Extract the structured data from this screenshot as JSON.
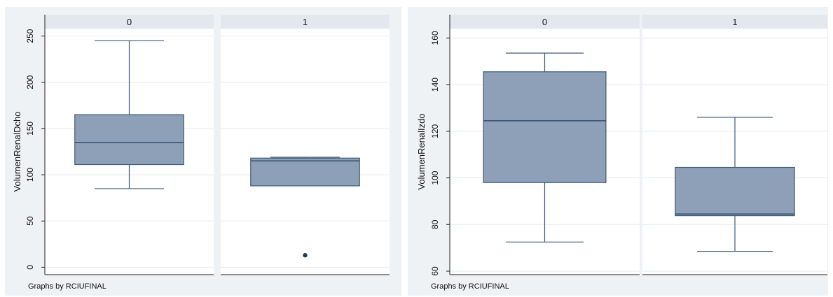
{
  "chart_data": [
    {
      "type": "box",
      "by_label": "Graphs by RCIUFINAL",
      "ylabel": "VolumenRenalDcho",
      "ylim": [
        -8,
        258
      ],
      "yticks": [
        0,
        50,
        100,
        150,
        200,
        250
      ],
      "grid": true,
      "panels": [
        {
          "label": "0",
          "min": 85,
          "q1": 111,
          "median": 135,
          "q3": 165,
          "max": 245,
          "outliers": []
        },
        {
          "label": "1",
          "min": 88,
          "q1": 88,
          "median": 115,
          "q3": 118,
          "max": 119,
          "outliers": [
            13
          ]
        }
      ],
      "colors": {
        "box": "#8da0b8",
        "box_stroke": "#3c5a78",
        "median": "#2a4a6b",
        "whisker": "#3c5a78",
        "outlier": "#1d3f5f",
        "strip": "#e3e8ee",
        "frame_bg": "#eef2f5"
      }
    },
    {
      "type": "box",
      "by_label": "Graphs by RCIUFINAL",
      "ylabel": "VolumenRenalIzdo",
      "ylim": [
        58.5,
        164
      ],
      "yticks": [
        60,
        80,
        100,
        120,
        140,
        160
      ],
      "grid": true,
      "panels": [
        {
          "label": "0",
          "min": 72.5,
          "q1": 98,
          "median": 124.5,
          "q3": 145.5,
          "max": 153.5,
          "outliers": []
        },
        {
          "label": "1",
          "min": 68.5,
          "q1": 83.8,
          "median": 84.5,
          "q3": 104.5,
          "max": 126,
          "outliers": []
        }
      ],
      "colors": {
        "box": "#8da0b8",
        "box_stroke": "#3c5a78",
        "median": "#2a4a6b",
        "whisker": "#3c5a78",
        "outlier": "#1d3f5f",
        "strip": "#e3e8ee",
        "frame_bg": "#eef2f5"
      }
    }
  ]
}
